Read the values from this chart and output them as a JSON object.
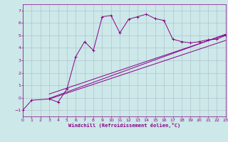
{
  "xlabel": "Windchill (Refroidissement éolien,°C)",
  "xlim": [
    0,
    23
  ],
  "ylim": [
    -1.5,
    7.5
  ],
  "xticks": [
    0,
    1,
    2,
    3,
    4,
    5,
    6,
    7,
    8,
    9,
    10,
    11,
    12,
    13,
    14,
    15,
    16,
    17,
    18,
    19,
    20,
    21,
    22,
    23
  ],
  "yticks": [
    -1,
    0,
    1,
    2,
    3,
    4,
    5,
    6,
    7
  ],
  "bg_color": "#cce8e8",
  "line_color": "#880088",
  "grid_color": "#aabbcc",
  "main_line_x": [
    0,
    1,
    3,
    4,
    5,
    6,
    7,
    8,
    9,
    10,
    11,
    12,
    13,
    14,
    15,
    16,
    17,
    18,
    19,
    20,
    21,
    22,
    23
  ],
  "main_line_y": [
    -1.0,
    -0.2,
    -0.1,
    -0.35,
    0.7,
    3.3,
    4.5,
    3.8,
    6.5,
    6.6,
    5.2,
    6.3,
    6.5,
    6.7,
    6.35,
    6.2,
    4.7,
    4.5,
    4.4,
    4.5,
    4.65,
    4.7,
    5.0
  ],
  "reg_lines": [
    {
      "x": [
        3,
        23
      ],
      "y": [
        -0.1,
        4.6
      ]
    },
    {
      "x": [
        3,
        23
      ],
      "y": [
        0.3,
        5.05
      ]
    },
    {
      "x": [
        3,
        23
      ],
      "y": [
        -0.05,
        5.1
      ]
    }
  ]
}
